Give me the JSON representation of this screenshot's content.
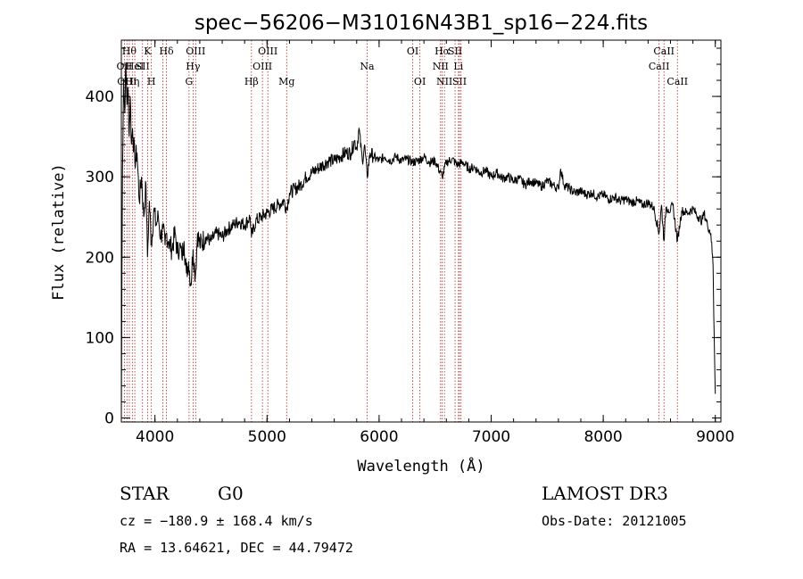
{
  "chart_data": {
    "type": "line",
    "title": "spec−56206−M31016N43B1_sp16−224.fits",
    "xlabel": "Wavelength (Å)",
    "ylabel": "Flux (relative)",
    "xlim": [
      3700,
      9050
    ],
    "ylim": [
      -5,
      470
    ],
    "x_ticks": [
      4000,
      5000,
      6000,
      7000,
      8000,
      9000
    ],
    "y_ticks": [
      0,
      100,
      200,
      300,
      400
    ],
    "grid": false,
    "series": [
      {
        "x": [
          3700,
          3710,
          3720,
          3730,
          3740,
          3750,
          3760,
          3770,
          3780,
          3790,
          3800,
          3820,
          3840,
          3860,
          3880,
          3900,
          3920,
          3933,
          3950,
          3968,
          3990,
          4010,
          4030,
          4050,
          4070,
          4090,
          4102,
          4120,
          4150,
          4180,
          4200,
          4220,
          4240,
          4260,
          4280,
          4300,
          4320,
          4340,
          4360,
          4380,
          4400,
          4450,
          4500,
          4550,
          4600,
          4650,
          4700,
          4750,
          4800,
          4850,
          4861,
          4900,
          4950,
          5000,
          5050,
          5100,
          5150,
          5175,
          5200,
          5250,
          5300,
          5350,
          5400,
          5450,
          5500,
          5550,
          5600,
          5650,
          5700,
          5750,
          5780,
          5800,
          5820,
          5850,
          5870,
          5893,
          5920,
          5950,
          6000,
          6050,
          6100,
          6150,
          6200,
          6250,
          6300,
          6350,
          6400,
          6450,
          6500,
          6563,
          6600,
          6650,
          6700,
          6750,
          6800,
          6850,
          6900,
          6950,
          7000,
          7050,
          7100,
          7150,
          7200,
          7250,
          7300,
          7350,
          7400,
          7450,
          7500,
          7550,
          7600,
          7620,
          7650,
          7700,
          7750,
          7800,
          7850,
          7900,
          7950,
          8000,
          8050,
          8100,
          8150,
          8200,
          8250,
          8300,
          8350,
          8400,
          8450,
          8498,
          8520,
          8542,
          8560,
          8580,
          8600,
          8620,
          8662,
          8700,
          8750,
          8800,
          8850,
          8880,
          8900,
          8930,
          8960,
          8980,
          8990,
          9000
        ],
        "y": [
          0,
          310,
          420,
          380,
          440,
          390,
          410,
          350,
          400,
          340,
          360,
          320,
          330,
          270,
          300,
          250,
          290,
          200,
          270,
          215,
          260,
          240,
          250,
          225,
          235,
          215,
          230,
          220,
          210,
          230,
          205,
          215,
          200,
          220,
          180,
          195,
          165,
          210,
          175,
          230,
          215,
          225,
          220,
          230,
          225,
          235,
          240,
          245,
          240,
          250,
          225,
          245,
          250,
          255,
          260,
          265,
          270,
          260,
          280,
          285,
          290,
          300,
          305,
          310,
          315,
          320,
          320,
          325,
          330,
          330,
          345,
          335,
          360,
          320,
          340,
          300,
          330,
          325,
          320,
          325,
          320,
          325,
          320,
          322,
          318,
          320,
          325,
          318,
          320,
          300,
          318,
          322,
          315,
          318,
          310,
          312,
          305,
          308,
          300,
          305,
          298,
          300,
          295,
          298,
          290,
          295,
          292,
          288,
          295,
          290,
          285,
          310,
          290,
          285,
          280,
          282,
          278,
          280,
          275,
          278,
          272,
          275,
          270,
          272,
          268,
          270,
          265,
          268,
          262,
          230,
          265,
          220,
          262,
          260,
          258,
          265,
          220,
          258,
          255,
          260,
          250,
          245,
          255,
          240,
          230,
          190,
          100,
          30
        ]
      }
    ],
    "lines": [
      {
        "x": 3727,
        "label": "OII",
        "row": 2
      },
      {
        "x": 3750,
        "label": "OIII",
        "row": 3
      },
      {
        "x": 3771,
        "label": "Hθ",
        "row": 1
      },
      {
        "x": 3798,
        "label": "Hη",
        "row": 3
      },
      {
        "x": 3820,
        "label": "HeI",
        "row": 2
      },
      {
        "x": 3889,
        "label": "SII",
        "row": 2
      },
      {
        "x": 3934,
        "label": "K",
        "row": 1
      },
      {
        "x": 3968,
        "label": "H",
        "row": 3
      },
      {
        "x": 4102,
        "label": "Hδ",
        "row": 1
      },
      {
        "x": 4070,
        "label": "",
        "row": 0
      },
      {
        "x": 4304,
        "label": "G",
        "row": 3
      },
      {
        "x": 4340,
        "label": "Hγ",
        "row": 2
      },
      {
        "x": 4363,
        "label": "OIII",
        "row": 1
      },
      {
        "x": 4861,
        "label": "Hβ",
        "row": 3
      },
      {
        "x": 4959,
        "label": "OIII",
        "row": 2
      },
      {
        "x": 5007,
        "label": "OIII",
        "row": 1
      },
      {
        "x": 5175,
        "label": "Mg",
        "row": 3
      },
      {
        "x": 5893,
        "label": "Na",
        "row": 2
      },
      {
        "x": 6300,
        "label": "OI",
        "row": 1
      },
      {
        "x": 6364,
        "label": "OI",
        "row": 3
      },
      {
        "x": 6548,
        "label": "NII",
        "row": 2
      },
      {
        "x": 6563,
        "label": "Hα",
        "row": 1
      },
      {
        "x": 6583,
        "label": "NII",
        "row": 3
      },
      {
        "x": 6678,
        "label": "SII",
        "row": 1
      },
      {
        "x": 6708,
        "label": "Li",
        "row": 2
      },
      {
        "x": 6717,
        "label": "SII",
        "row": 3
      },
      {
        "x": 6731,
        "label": "",
        "row": 0
      },
      {
        "x": 8498,
        "label": "CaII",
        "row": 2
      },
      {
        "x": 8542,
        "label": "CaII",
        "row": 1
      },
      {
        "x": 8662,
        "label": "CaII",
        "row": 3
      }
    ]
  },
  "info": {
    "class": "STAR",
    "subclass": "G0",
    "survey": "LAMOST DR3",
    "cz": "cz = −180.9 ± 168.4 km/s",
    "obs_date": "Obs-Date: 20121005",
    "coords": "RA =  13.64621, DEC =  44.79472"
  }
}
